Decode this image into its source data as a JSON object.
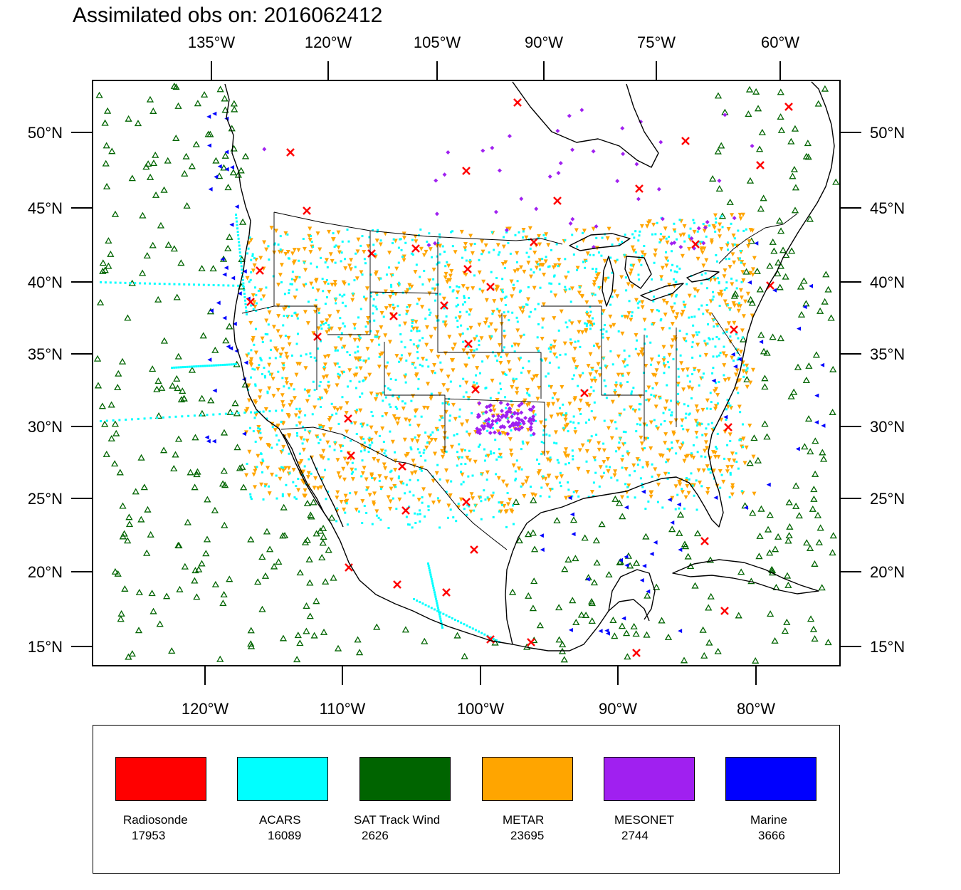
{
  "title": "Assimilated obs on: 2016062412",
  "top_lon_labels": [
    "135°W",
    "120°W",
    "105°W",
    "90°W",
    "75°W",
    "60°W"
  ],
  "bottom_lon_labels": [
    "120°W",
    "110°W",
    "100°W",
    "90°W",
    "80°W"
  ],
  "lat_labels": [
    "50°N",
    "45°N",
    "40°N",
    "35°N",
    "30°N",
    "25°N",
    "20°N",
    "15°N"
  ],
  "legend": [
    {
      "name": "Radiosonde",
      "count": "17953",
      "color": "#ff0000"
    },
    {
      "name": "ACARS",
      "count": "16089",
      "color": "#00ffff"
    },
    {
      "name": "SAT Track Wind",
      "count": "2626",
      "color": "#006400"
    },
    {
      "name": "METAR",
      "count": "23695",
      "color": "#ffa500"
    },
    {
      "name": "MESONET",
      "count": "2744",
      "color": "#a020f0"
    },
    {
      "name": "Marine",
      "count": "3666",
      "color": "#0000ff"
    }
  ],
  "colors": {
    "radiosonde": "#ff0000",
    "acars": "#00ffff",
    "sat_track_wind": "#006400",
    "metar": "#ffa500",
    "mesonet": "#a020f0",
    "marine": "#0000ff"
  },
  "map_extent": {
    "lat_min": 14,
    "lat_max": 53.5,
    "lon_min": -128,
    "lon_max": -73
  }
}
